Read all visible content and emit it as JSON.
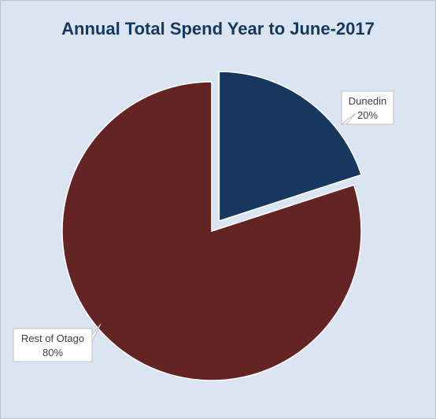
{
  "chart_data": {
    "type": "pie",
    "title": "Annual Total Spend Year to June-2017",
    "slices": [
      {
        "label": "Dunedin",
        "value": 20,
        "value_label": "20%",
        "color": "#17375e",
        "exploded": true
      },
      {
        "label": "Rest of Otago",
        "value": 80,
        "value_label": "80%",
        "color": "#632423",
        "exploded": false
      }
    ],
    "start_angle_deg": 0,
    "direction": "clockwise",
    "background": "#dbe5f1",
    "legend": "none"
  }
}
